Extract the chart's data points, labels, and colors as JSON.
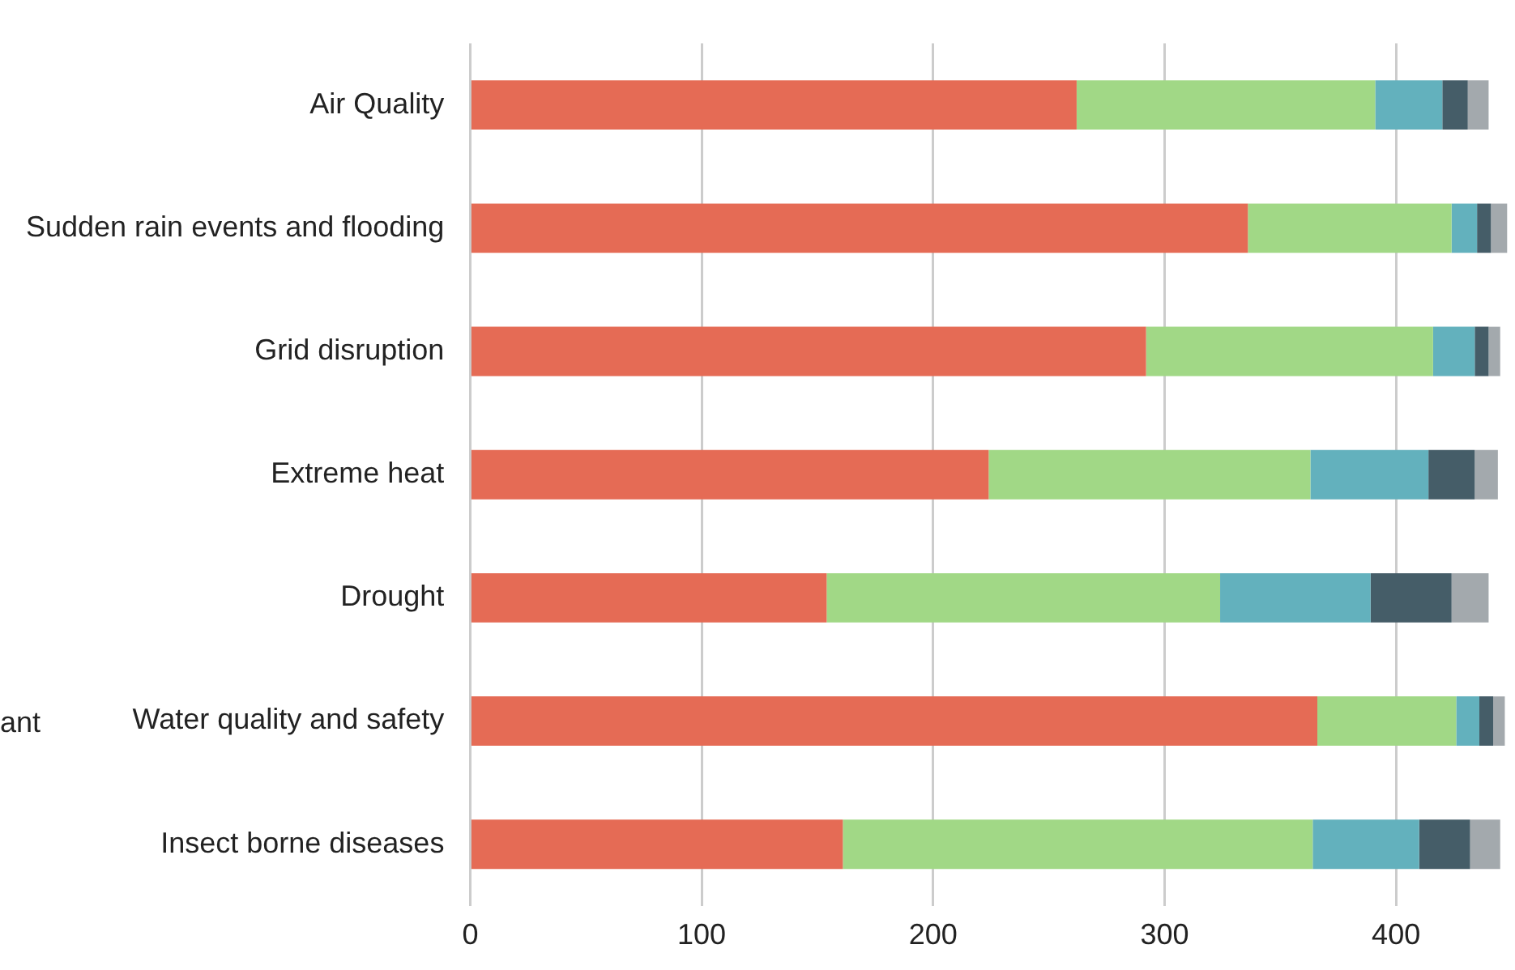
{
  "chart_data": {
    "type": "bar",
    "orientation": "horizontal",
    "stacked": true,
    "categories": [
      "Air Quality",
      "Sudden rain events and flooding",
      "Grid disruption",
      "Extreme heat",
      "Drought",
      "Water quality and safety",
      "Insect borne diseases"
    ],
    "series": [
      {
        "color": "#e56b55",
        "values": [
          262,
          336,
          292,
          224,
          154,
          366,
          161
        ]
      },
      {
        "color": "#a1d886",
        "values": [
          129,
          88,
          124,
          139,
          170,
          60,
          203
        ]
      },
      {
        "color": "#63b1bd",
        "values": [
          29,
          11,
          18,
          51,
          65,
          10,
          46
        ]
      },
      {
        "color": "#455d68",
        "values": [
          11,
          6,
          6,
          20,
          35,
          6,
          22
        ]
      },
      {
        "color": "#a3a9ad",
        "values": [
          9,
          7,
          5,
          10,
          16,
          5,
          13
        ]
      }
    ],
    "xlim": [
      0,
      450
    ],
    "xticks": [
      0,
      100,
      200,
      300,
      400
    ],
    "grid": "x",
    "legend": false,
    "annotations": [
      "ant"
    ]
  }
}
